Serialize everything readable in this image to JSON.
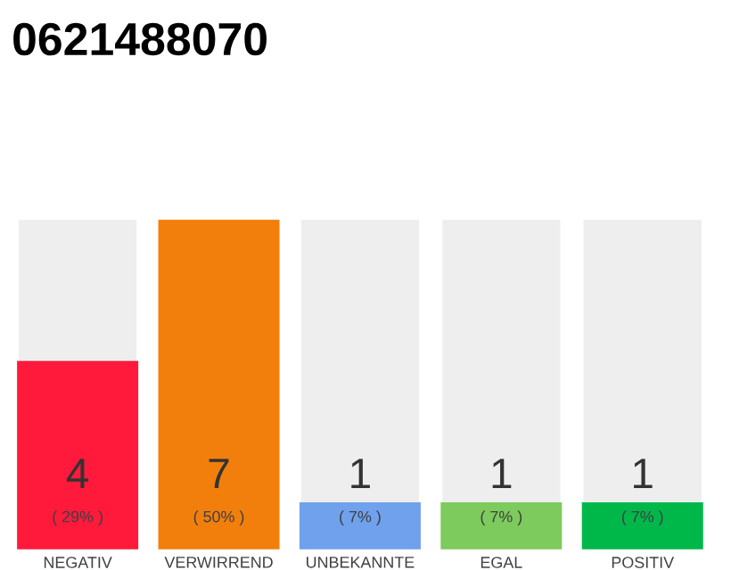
{
  "chart_data": {
    "type": "bar",
    "title": "0621488070",
    "categories": [
      "NEGATIV",
      "VERWIRREND",
      "UNBEKANNTE",
      "EGAL",
      "POSITIV"
    ],
    "values": [
      4,
      7,
      1,
      1,
      1
    ],
    "colors": [
      "#ff1a3c",
      "#f27f0c",
      "#6fa1ec",
      "#7ccb5c",
      "#00b84a"
    ],
    "data_labels": true,
    "annotations": [
      "( 29% )",
      "( 50% )",
      "( 7% )",
      "( 7% )",
      "( 7% )"
    ]
  }
}
